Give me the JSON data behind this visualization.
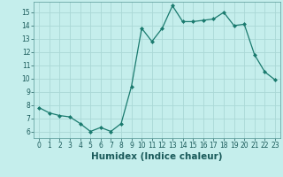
{
  "x": [
    0,
    1,
    2,
    3,
    4,
    5,
    6,
    7,
    8,
    9,
    10,
    11,
    12,
    13,
    14,
    15,
    16,
    17,
    18,
    19,
    20,
    21,
    22,
    23
  ],
  "y": [
    7.8,
    7.4,
    7.2,
    7.1,
    6.6,
    6.0,
    6.3,
    6.0,
    6.6,
    9.4,
    13.8,
    12.8,
    13.8,
    15.5,
    14.3,
    14.3,
    14.4,
    14.5,
    15.0,
    14.0,
    14.1,
    11.8,
    10.5,
    9.9
  ],
  "line_color": "#1a7a6e",
  "marker": "D",
  "marker_size": 2.0,
  "bg_color": "#c5eeec",
  "grid_color": "#aad8d6",
  "xlabel": "Humidex (Indice chaleur)",
  "xlim": [
    -0.5,
    23.5
  ],
  "ylim": [
    5.5,
    15.8
  ],
  "yticks": [
    6,
    7,
    8,
    9,
    10,
    11,
    12,
    13,
    14,
    15
  ],
  "xticks": [
    0,
    1,
    2,
    3,
    4,
    5,
    6,
    7,
    8,
    9,
    10,
    11,
    12,
    13,
    14,
    15,
    16,
    17,
    18,
    19,
    20,
    21,
    22,
    23
  ],
  "tick_fontsize": 5.5,
  "xlabel_fontsize": 7.5,
  "label_color": "#1a5a5a"
}
